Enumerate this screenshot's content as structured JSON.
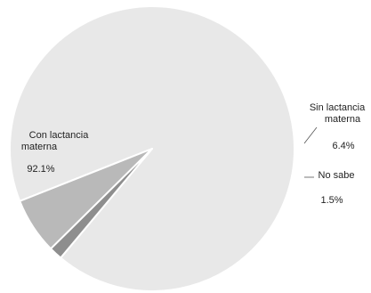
{
  "chart_data": {
    "type": "pie",
    "start_angle_deg": 130,
    "direction": "counterclockwise",
    "legend": "none",
    "slices": [
      {
        "label_lines": [
          "Con lactancia",
          "materna"
        ],
        "value": 92.1,
        "value_label": "92.1%",
        "color": "#e8e8e8"
      },
      {
        "label_lines": [
          "Sin lactancia",
          "materna"
        ],
        "value": 6.4,
        "value_label": "6.4%",
        "color": "#b9b9b9"
      },
      {
        "label_lines": [
          "No sabe"
        ],
        "value": 1.5,
        "value_label": "1.5%",
        "color": "#8e8e8e"
      }
    ]
  }
}
